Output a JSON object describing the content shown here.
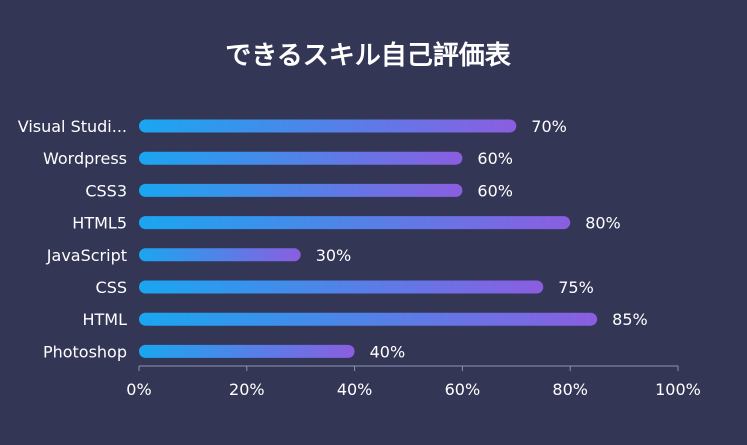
{
  "colors": {
    "background": "#343656",
    "bar_start": "#1aa6f0",
    "bar_end": "#8a5ee0",
    "axis": "#8f92b0"
  },
  "chart_data": {
    "type": "bar",
    "orientation": "horizontal",
    "title": "できるスキル自己評価表",
    "categories": [
      "Visual Studi...",
      "Wordpress",
      "CSS3",
      "HTML5",
      "JavaScript",
      "CSS",
      "HTML",
      "Photoshop"
    ],
    "values": [
      70,
      60,
      60,
      80,
      30,
      75,
      85,
      40
    ],
    "value_labels": [
      "70%",
      "60%",
      "60%",
      "80%",
      "30%",
      "75%",
      "85%",
      "40%"
    ],
    "xlim": [
      0,
      100
    ],
    "x_ticks": [
      0,
      20,
      40,
      60,
      80,
      100
    ],
    "x_tick_labels": [
      "0%",
      "20%",
      "40%",
      "60%",
      "80%",
      "100%"
    ],
    "grid": false,
    "legend": "none"
  }
}
